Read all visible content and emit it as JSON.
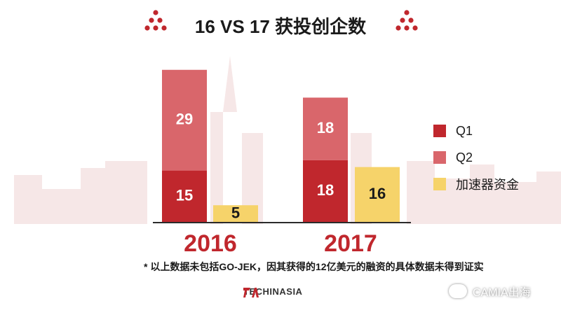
{
  "title": "16 VS 17 获投创企数",
  "note": "* 以上数据未包括GO-JEK，因其获得的12亿美元的融资的具体数据未得到证实",
  "logo_text": "TECHINASIA",
  "watermark_text": "CAMIA出海",
  "colors": {
    "q1": "#c0272d",
    "q2": "#d9666b",
    "accelerator": "#f6d36a",
    "year_label": "#c0272d",
    "dots": "#c0272d"
  },
  "chart_data": {
    "type": "bar",
    "stacked": true,
    "categories": [
      "2016",
      "2017"
    ],
    "series": [
      {
        "name": "Q1",
        "stack": "a",
        "values": [
          15,
          18
        ]
      },
      {
        "name": "Q2",
        "stack": "a",
        "values": [
          29,
          18
        ]
      },
      {
        "name": "加速器资金",
        "stack": "b",
        "values": [
          5,
          16
        ]
      }
    ],
    "ylim": [
      0,
      50
    ],
    "grid": false,
    "legend_position": "right",
    "legend": [
      "Q1",
      "Q2",
      "加速器资金"
    ]
  }
}
